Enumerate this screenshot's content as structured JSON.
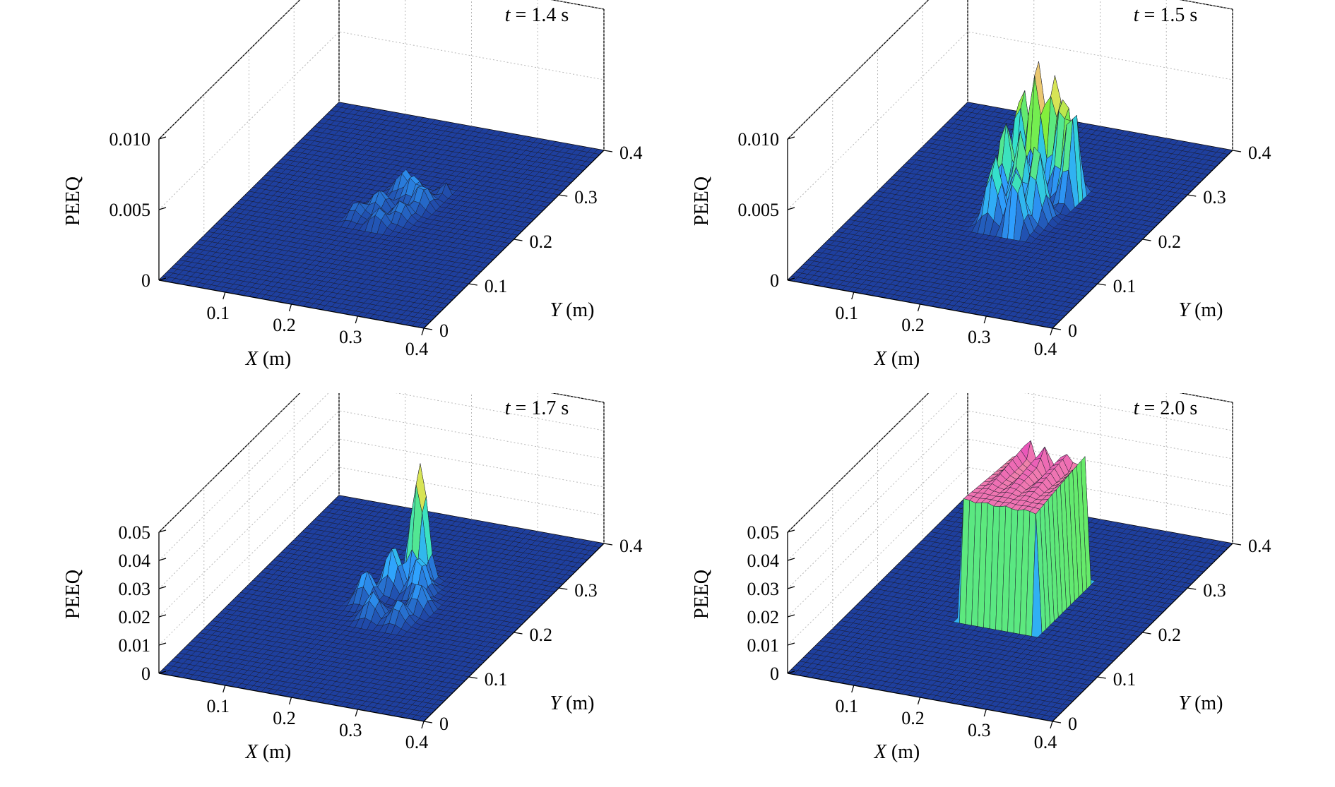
{
  "chart_data": [
    {
      "type": "surface",
      "title_var": "t",
      "title_rest": " = 1.4 s",
      "xlabel_var": "X",
      "xlabel_unit": " (m)",
      "ylabel_var": "Y",
      "ylabel_unit": " (m)",
      "zlabel": "PEEQ",
      "xlim": [
        0,
        0.4
      ],
      "ylim": [
        0,
        0.4
      ],
      "zlim": [
        0,
        0.01
      ],
      "x_ticks": [
        "0.1",
        "0.2",
        "0.3",
        "0.4"
      ],
      "y_ticks": [
        "0",
        "0.1",
        "0.2",
        "0.3",
        "0.4"
      ],
      "z_ticks": [
        "0",
        "0.005",
        "0.010"
      ],
      "colorscale": [
        "#1e3f9e",
        "#2fa0ff",
        "#33e0d0",
        "#7ef03c",
        "#e8e25a",
        "#f07ab0",
        "#e020c8"
      ],
      "region": {
        "x": [
          0.16,
          0.26
        ],
        "y": [
          0.17,
          0.27
        ]
      },
      "peaks": [
        {
          "x": 0.2,
          "y": 0.25,
          "z": 0.0017
        },
        {
          "x": 0.22,
          "y": 0.24,
          "z": 0.0018
        },
        {
          "x": 0.24,
          "y": 0.23,
          "z": 0.0016
        },
        {
          "x": 0.19,
          "y": 0.21,
          "z": 0.0014
        },
        {
          "x": 0.23,
          "y": 0.2,
          "z": 0.0013
        },
        {
          "x": 0.21,
          "y": 0.18,
          "z": 0.0012
        },
        {
          "x": 0.17,
          "y": 0.19,
          "z": 0.001
        },
        {
          "x": 0.26,
          "y": 0.27,
          "z": 0.0011
        }
      ]
    },
    {
      "type": "surface",
      "title_var": "t",
      "title_rest": " = 1.5 s",
      "xlabel_var": "X",
      "xlabel_unit": " (m)",
      "ylabel_var": "Y",
      "ylabel_unit": " (m)",
      "zlabel": "PEEQ",
      "xlim": [
        0,
        0.4
      ],
      "ylim": [
        0,
        0.4
      ],
      "zlim": [
        0,
        0.01
      ],
      "x_ticks": [
        "0.1",
        "0.2",
        "0.3",
        "0.4"
      ],
      "y_ticks": [
        "0",
        "0.1",
        "0.2",
        "0.3",
        "0.4"
      ],
      "z_ticks": [
        "0",
        "0.005",
        "0.010"
      ],
      "colorscale": [
        "#1e3f9e",
        "#2fa0ff",
        "#33e0d0",
        "#7ef03c",
        "#e8e25a",
        "#f07ab0",
        "#e020c8"
      ],
      "region": {
        "x": [
          0.15,
          0.27
        ],
        "y": [
          0.16,
          0.28
        ]
      },
      "peaks": [
        {
          "x": 0.17,
          "y": 0.27,
          "z": 0.0068
        },
        {
          "x": 0.2,
          "y": 0.26,
          "z": 0.0095
        },
        {
          "x": 0.22,
          "y": 0.27,
          "z": 0.0082
        },
        {
          "x": 0.24,
          "y": 0.26,
          "z": 0.0074
        },
        {
          "x": 0.26,
          "y": 0.25,
          "z": 0.007
        },
        {
          "x": 0.18,
          "y": 0.22,
          "z": 0.006
        },
        {
          "x": 0.21,
          "y": 0.21,
          "z": 0.0058
        },
        {
          "x": 0.24,
          "y": 0.2,
          "z": 0.0055
        },
        {
          "x": 0.19,
          "y": 0.18,
          "z": 0.0048
        },
        {
          "x": 0.23,
          "y": 0.17,
          "z": 0.0045
        }
      ]
    },
    {
      "type": "surface",
      "title_var": "t",
      "title_rest": " = 1.7 s",
      "xlabel_var": "X",
      "xlabel_unit": " (m)",
      "ylabel_var": "Y",
      "ylabel_unit": " (m)",
      "zlabel": "PEEQ",
      "xlim": [
        0,
        0.4
      ],
      "ylim": [
        0,
        0.4
      ],
      "zlim": [
        0,
        0.05
      ],
      "x_ticks": [
        "0.1",
        "0.2",
        "0.3",
        "0.4"
      ],
      "y_ticks": [
        "0",
        "0.1",
        "0.2",
        "0.3",
        "0.4"
      ],
      "z_ticks": [
        "0",
        "0.01",
        "0.02",
        "0.03",
        "0.04",
        "0.05"
      ],
      "colorscale": [
        "#1e3f9e",
        "#2fa0ff",
        "#33e0d0",
        "#7ef03c",
        "#e8e25a",
        "#f07ab0",
        "#e020c8"
      ],
      "region": {
        "x": [
          0.15,
          0.27
        ],
        "y": [
          0.16,
          0.28
        ]
      },
      "peaks": [
        {
          "x": 0.21,
          "y": 0.27,
          "z": 0.042
        },
        {
          "x": 0.19,
          "y": 0.24,
          "z": 0.016
        },
        {
          "x": 0.23,
          "y": 0.24,
          "z": 0.014
        },
        {
          "x": 0.17,
          "y": 0.21,
          "z": 0.011
        },
        {
          "x": 0.25,
          "y": 0.21,
          "z": 0.01
        },
        {
          "x": 0.2,
          "y": 0.18,
          "z": 0.009
        },
        {
          "x": 0.24,
          "y": 0.18,
          "z": 0.008
        }
      ]
    },
    {
      "type": "surface",
      "title_var": "t",
      "title_rest": " = 2.0 s",
      "xlabel_var": "X",
      "xlabel_unit": " (m)",
      "ylabel_var": "Y",
      "ylabel_unit": " (m)",
      "zlabel": "PEEQ",
      "xlim": [
        0,
        0.4
      ],
      "ylim": [
        0,
        0.4
      ],
      "zlim": [
        0,
        0.05
      ],
      "x_ticks": [
        "0.1",
        "0.2",
        "0.3",
        "0.4"
      ],
      "y_ticks": [
        "0",
        "0.1",
        "0.2",
        "0.3",
        "0.4"
      ],
      "z_ticks": [
        "0",
        "0.01",
        "0.02",
        "0.03",
        "0.04",
        "0.05"
      ],
      "colorscale": [
        "#1e3f9e",
        "#2fa0ff",
        "#33e0d0",
        "#7ef03c",
        "#e8e25a",
        "#f07ab0",
        "#e020c8"
      ],
      "region": {
        "x": [
          0.15,
          0.27
        ],
        "y": [
          0.16,
          0.28
        ]
      },
      "plateau": 0.046,
      "peaks": [
        {
          "x": 0.18,
          "y": 0.27,
          "z": 0.049
        },
        {
          "x": 0.21,
          "y": 0.26,
          "z": 0.05
        },
        {
          "x": 0.24,
          "y": 0.27,
          "z": 0.048
        }
      ]
    }
  ]
}
